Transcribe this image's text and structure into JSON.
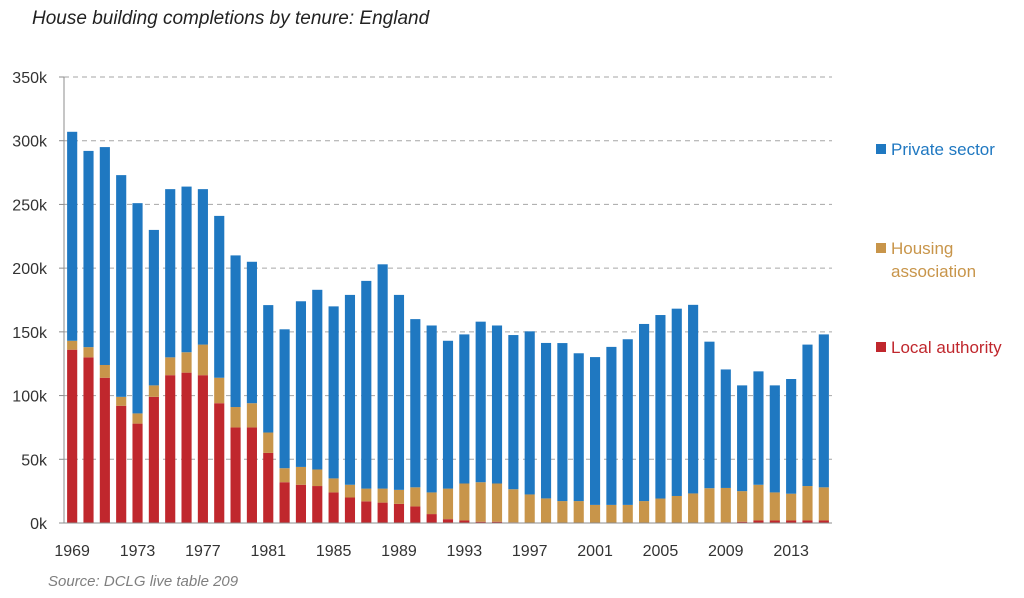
{
  "chart_data": {
    "type": "bar",
    "stacked": true,
    "title": "House building completions by tenure: England",
    "source": "Source: DCLG live table 209",
    "ylim": [
      0,
      350000
    ],
    "y_ticks": [
      {
        "value": 0,
        "label": "0k"
      },
      {
        "value": 50000,
        "label": "50k"
      },
      {
        "value": 100000,
        "label": "100k"
      },
      {
        "value": 150000,
        "label": "150k"
      },
      {
        "value": 200000,
        "label": "200k"
      },
      {
        "value": 250000,
        "label": "250k"
      },
      {
        "value": 300000,
        "label": "300k"
      },
      {
        "value": 350000,
        "label": "350k"
      }
    ],
    "grid": "horizontal-dashed",
    "legend_position": "right",
    "categories": [
      1969,
      1970,
      1971,
      1972,
      1973,
      1974,
      1975,
      1976,
      1977,
      1978,
      1979,
      1980,
      1981,
      1982,
      1983,
      1984,
      1985,
      1986,
      1987,
      1988,
      1989,
      1990,
      1991,
      1992,
      1993,
      1994,
      1995,
      1996,
      1997,
      1998,
      1999,
      2000,
      2001,
      2002,
      2003,
      2004,
      2005,
      2006,
      2007,
      2008,
      2009,
      2010,
      2011,
      2012,
      2013,
      2014,
      2015
    ],
    "x_tick_labels": [
      "1969",
      "1973",
      "1977",
      "1981",
      "1985",
      "1989",
      "1993",
      "1997",
      "2001",
      "2005",
      "2009",
      "2013"
    ],
    "series": [
      {
        "name": "Local authority",
        "color": "#c0272d",
        "values": [
          136000,
          130000,
          114000,
          92000,
          78000,
          99000,
          116000,
          118000,
          116000,
          94000,
          75000,
          75000,
          55000,
          32000,
          30000,
          29000,
          24000,
          20000,
          17000,
          16000,
          15000,
          13000,
          7000,
          3000,
          2000,
          1000,
          1000,
          500,
          400,
          300,
          200,
          200,
          200,
          200,
          200,
          200,
          200,
          200,
          200,
          300,
          500,
          1000,
          2000,
          2000,
          2000,
          2000,
          2000
        ]
      },
      {
        "name": "Housing association",
        "color": "#c8954a",
        "values": [
          7000,
          8000,
          10000,
          7000,
          8000,
          9000,
          14000,
          16000,
          24000,
          20000,
          16000,
          19000,
          16000,
          11000,
          14000,
          13000,
          11000,
          10000,
          10000,
          11000,
          11000,
          15000,
          17000,
          24000,
          29000,
          31000,
          30000,
          26000,
          22000,
          19000,
          17000,
          17000,
          14000,
          14000,
          14000,
          17000,
          19000,
          21000,
          23000,
          27000,
          27000,
          24000,
          28000,
          22000,
          21000,
          27000,
          26000
        ]
      },
      {
        "name": "Private sector",
        "color": "#1f78c1",
        "values": [
          164000,
          154000,
          171000,
          174000,
          165000,
          122000,
          132000,
          130000,
          122000,
          127000,
          119000,
          111000,
          100000,
          109000,
          130000,
          141000,
          135000,
          149000,
          163000,
          176000,
          153000,
          132000,
          131000,
          116000,
          117000,
          126000,
          124000,
          121000,
          128000,
          122000,
          124000,
          116000,
          116000,
          124000,
          130000,
          139000,
          144000,
          147000,
          148000,
          115000,
          93000,
          83000,
          89000,
          84000,
          90000,
          111000,
          120000
        ]
      }
    ],
    "legend": [
      {
        "label": "Private sector",
        "color": "#1f78c1"
      },
      {
        "label": "Housing association",
        "color": "#c8954a"
      },
      {
        "label": "Local authority",
        "color": "#c0272d"
      }
    ]
  }
}
